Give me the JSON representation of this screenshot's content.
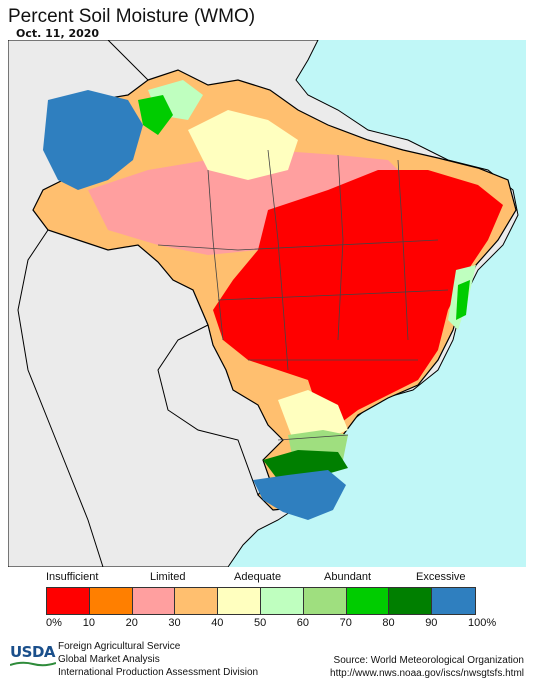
{
  "title": "Percent Soil Moisture (WMO)",
  "date": "Oct. 11, 2020",
  "legend": {
    "categories": [
      "Insufficient",
      "Limited",
      "Adequate",
      "Abundant",
      "Excessive"
    ],
    "ticks": [
      "0%",
      "10",
      "20",
      "30",
      "40",
      "50",
      "60",
      "70",
      "80",
      "90",
      "100%"
    ],
    "colors": [
      "#ff0000",
      "#ff7f00",
      "#ff9f9f",
      "#ffbf6f",
      "#ffffbf",
      "#bfffbf",
      "#9fdf7f",
      "#00cc00",
      "#007f00",
      "#2f7fbf"
    ]
  },
  "map": {
    "ocean_color": "#c0f7f7",
    "land_color": "#ebebeb"
  },
  "footer": {
    "logo": "USDA",
    "agency_lines": [
      "Foreign Agricultural Service",
      "Global Market Analysis",
      "International Production Assessment Division"
    ],
    "source_line1": "Source: World Meteorological Organization",
    "source_line2": "http://www.nws.noaa.gov/iscs/nwsgtsfs.html"
  }
}
